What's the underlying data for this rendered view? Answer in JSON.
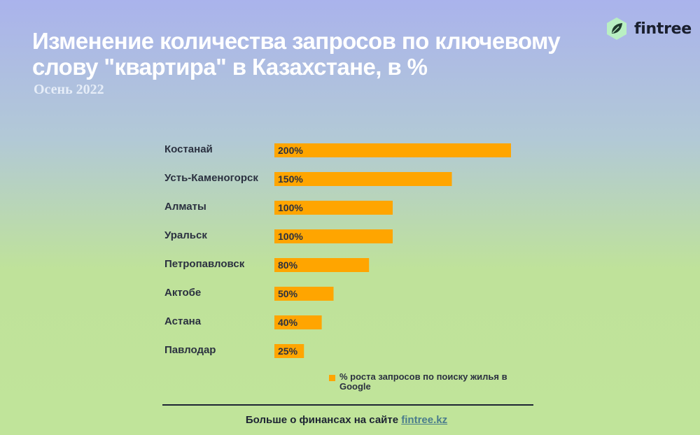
{
  "title": "Изменение количества запросов по ключевому слову \"квартира\" в Казахстане, в %",
  "subtitle": "Осень 2022",
  "logo": {
    "text": "fintree",
    "icon": "leaf-icon"
  },
  "chart_data": {
    "type": "bar",
    "orientation": "horizontal",
    "categories": [
      "Костанай",
      "Усть-Каменогорск",
      "Алматы",
      "Уральск",
      "Петропавловск",
      "Актобе",
      "Астана",
      "Павлодар"
    ],
    "values": [
      200,
      150,
      100,
      100,
      80,
      50,
      40,
      25
    ],
    "value_labels": [
      "200%",
      "150%",
      "100%",
      "100%",
      "80%",
      "50%",
      "40%",
      "25%"
    ],
    "unit": "%",
    "series": [
      {
        "name": "% роста запросов по поиску жилья в Google",
        "values": [
          200,
          150,
          100,
          100,
          80,
          50,
          40,
          25
        ],
        "color": "#ffa500"
      }
    ],
    "xlim": [
      0,
      200
    ],
    "grid": false,
    "legend_position": "bottom-right"
  },
  "footer": {
    "text": "Больше о финансах на сайте ",
    "link_text": "fintree.kz"
  },
  "colors": {
    "bar": "#ffa500",
    "text_dark": "#2b3140",
    "title": "#ffffff",
    "link": "#4a7c8c"
  }
}
